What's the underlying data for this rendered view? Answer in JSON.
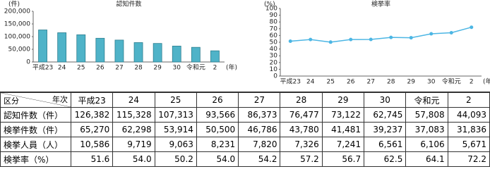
{
  "chart_data": [
    {
      "type": "bar",
      "title": "認知件数",
      "y_unit": "(件)",
      "x_unit": "(年)",
      "categories": [
        "平成23",
        "24",
        "25",
        "26",
        "27",
        "28",
        "29",
        "30",
        "令和元",
        "2"
      ],
      "values": [
        126382,
        115328,
        107313,
        93566,
        86373,
        76477,
        73122,
        62745,
        57808,
        44093
      ],
      "color": "#4fb3c8",
      "ylim": [
        0,
        200000
      ],
      "yticks": [
        0,
        {
          "value": 50000,
          "label": "50,000"
        },
        {
          "value": 100000,
          "label": "100,000"
        },
        {
          "value": 150000,
          "label": "150,000"
        },
        {
          "value": 200000,
          "label": "200,000"
        }
      ],
      "grid": false
    },
    {
      "type": "line",
      "title": "検挙率",
      "y_unit": "(%)",
      "x_unit": "(年)",
      "categories": [
        "平成23",
        "24",
        "25",
        "26",
        "27",
        "28",
        "29",
        "30",
        "令和元",
        "2"
      ],
      "values": [
        51.6,
        54.0,
        50.2,
        54.0,
        54.2,
        57.2,
        56.7,
        62.5,
        64.1,
        72.2
      ],
      "color": "#4cb6e4",
      "ylim": [
        0,
        100
      ],
      "yticks": [
        0,
        10,
        20,
        30,
        40,
        50,
        60,
        70,
        80,
        90,
        100
      ],
      "grid": false
    }
  ],
  "table": {
    "corner_row": "区分",
    "corner_col": "年次",
    "columns": [
      "平成23",
      "24",
      "25",
      "26",
      "27",
      "28",
      "29",
      "30",
      "令和元",
      "2"
    ],
    "rows": [
      [
        "認知件数（件）",
        "126,382",
        "115,328",
        "107,313",
        "93,566",
        "86,373",
        "76,477",
        "73,122",
        "62,745",
        "57,808",
        "44,093"
      ],
      [
        "検挙件数（件）",
        "65,270",
        "62,298",
        "53,914",
        "50,500",
        "46,786",
        "43,780",
        "41,481",
        "39,237",
        "37,083",
        "31,836"
      ],
      [
        "検挙人員（人）",
        "10,586",
        "9,719",
        "9,063",
        "8,231",
        "7,820",
        "7,326",
        "7,241",
        "6,561",
        "6,106",
        "5,671"
      ],
      [
        "検挙率（%）",
        "51.6",
        "54.0",
        "50.2",
        "54.0",
        "54.2",
        "57.2",
        "56.7",
        "62.5",
        "64.1",
        "72.2"
      ]
    ]
  }
}
